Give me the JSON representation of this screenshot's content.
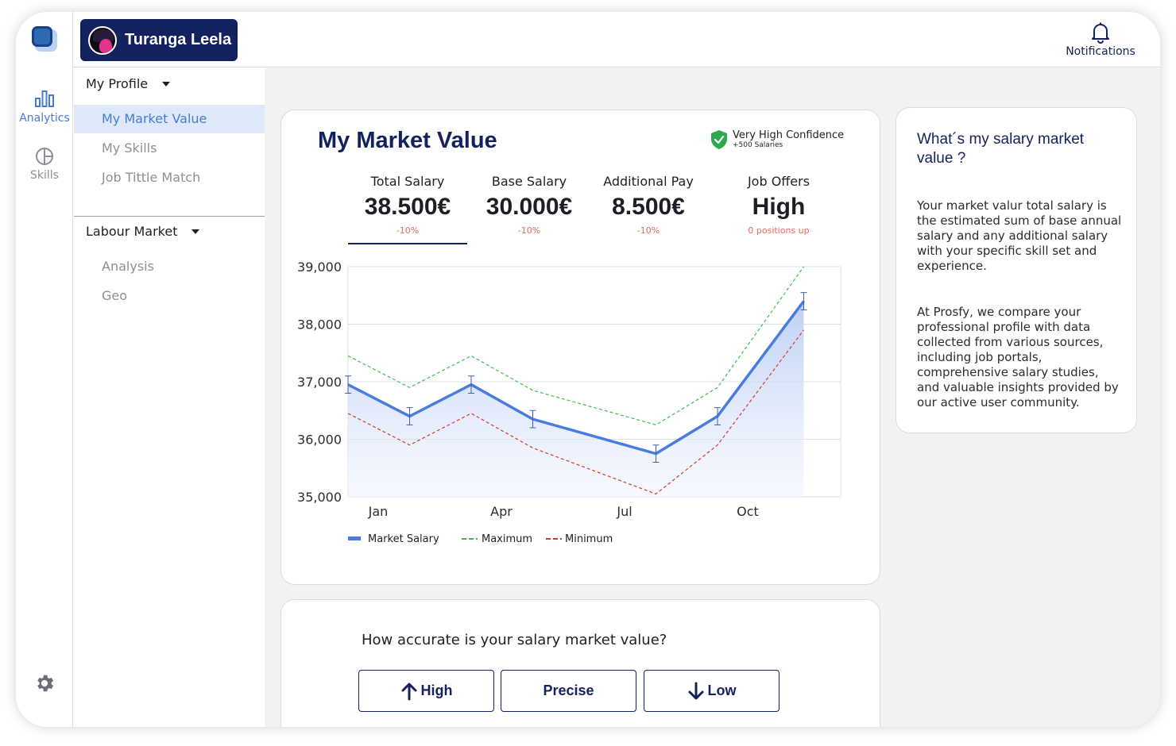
{
  "rail": {
    "analytics_label": "Analytics",
    "skills_label": "Skills"
  },
  "header": {
    "user_name": "Turanga Leela",
    "notifications_label": "Notifications"
  },
  "subnav": {
    "profile_title": "My Profile",
    "profile_items": [
      "My Market Value",
      "My Skills",
      "Job Tittle Match"
    ],
    "labour_title": "Labour Market",
    "labour_items": [
      "Analysis",
      "Geo"
    ]
  },
  "market_value": {
    "title": "My Market Value",
    "confidence": "Very High Confidence",
    "confidence_sub": "+500 Salaries",
    "kpis": [
      {
        "label": "Total Salary",
        "value": "38.500€",
        "delta": "-10%"
      },
      {
        "label": "Base Salary",
        "value": "30.000€",
        "delta": "-10%"
      },
      {
        "label": "Additional Pay",
        "value": "8.500€",
        "delta": "-10%"
      },
      {
        "label": "Job Offers",
        "value": "High",
        "delta": "0 positions up"
      }
    ]
  },
  "chart_data": {
    "type": "line",
    "title": "",
    "xlabel": "",
    "ylabel": "",
    "x": [
      1,
      2,
      3,
      4,
      5,
      6,
      7,
      8,
      9
    ],
    "x_tick_labels": {
      "1": "Jan",
      "3": "Apr",
      "5": "Jul",
      "7": "Oct"
    },
    "ylim": [
      35000,
      39000
    ],
    "y_ticks": [
      35000,
      36000,
      37000,
      38000,
      39000
    ],
    "y_tick_labels": [
      "35,000",
      "36,000",
      "37,000",
      "38,000",
      "39,000"
    ],
    "series": [
      {
        "name": "Market Salary",
        "values": [
          36950,
          36400,
          36950,
          36350,
          35750,
          36400,
          38400
        ],
        "x": [
          1,
          2,
          3,
          4,
          6,
          7,
          8.4
        ],
        "color": "#4a7be0",
        "style": "solid",
        "error": 150,
        "fill": true
      },
      {
        "name": "Maximum",
        "values": [
          37450,
          36900,
          37450,
          36850,
          36250,
          36900,
          39000
        ],
        "x": [
          1,
          2,
          3,
          4,
          6,
          7,
          8.4
        ],
        "color": "#33c04a",
        "style": "dashed"
      },
      {
        "name": "Minimum",
        "values": [
          36450,
          35900,
          36450,
          35850,
          35050,
          35900,
          37900
        ],
        "x": [
          1,
          2,
          3,
          4,
          6,
          7,
          8.4
        ],
        "color": "#d23a2a",
        "style": "dashed"
      }
    ],
    "grid": true,
    "legend": "bottom-left"
  },
  "accuracy": {
    "question": "How accurate is your salary market value?",
    "high_label": "High",
    "precise_label": "Precise",
    "low_label": "Low"
  },
  "info": {
    "title": "What´s my salary market value ?",
    "paragraph1": "Your market valur total salary is the estimated sum of base annual salary and any additional salary with your specific skill set and experience.",
    "paragraph2": "At Prosfy, we compare your professional profile with data collected from various sources, including job portals, comprehensive salary studies, and valuable insights provided by our active user community."
  },
  "colors": {
    "navy": "#13215e",
    "accent": "#4a7bd3",
    "delta_red": "#e26b5c",
    "shield_green": "#2fa84f"
  }
}
